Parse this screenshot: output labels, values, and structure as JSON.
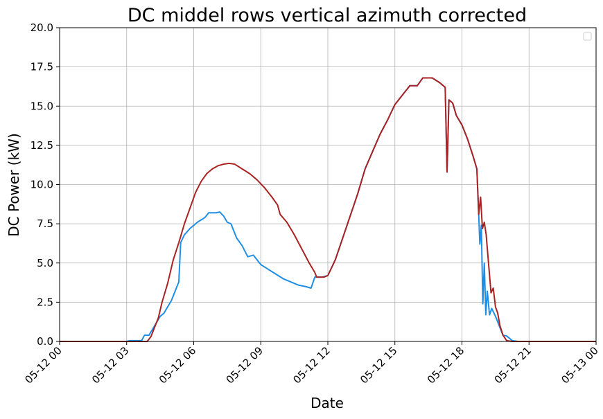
{
  "chart_data": {
    "type": "line",
    "title": "DC middel rows vertical azimuth corrected",
    "xlabel": "Date",
    "ylabel": "DC Power (kW)",
    "xlim": [
      "2024-05-12 00:00",
      "2024-05-13 00:00"
    ],
    "ylim": [
      0,
      20
    ],
    "grid": true,
    "legend": "top-right",
    "x_tick_labels": [
      "05-12 00",
      "05-12 03",
      "05-12 06",
      "05-12 09",
      "05-12 12",
      "05-12 15",
      "05-12 18",
      "05-12 21",
      "05-13 00"
    ],
    "y_tick_labels": [
      "0.0",
      "2.5",
      "5.0",
      "7.5",
      "10.0",
      "12.5",
      "15.0",
      "17.5",
      "20.0"
    ],
    "series": [
      {
        "color": "#1f8fe6",
        "points": [
          [
            "05-12 00:00",
            0
          ],
          [
            "05-12 03:00",
            0
          ],
          [
            "05-12 03:08",
            0.05
          ],
          [
            "05-12 03:40",
            0.05
          ],
          [
            "05-12 03:48",
            0.4
          ],
          [
            "05-12 04:00",
            0.4
          ],
          [
            "05-12 04:10",
            0.8
          ],
          [
            "05-12 04:20",
            1.2
          ],
          [
            "05-12 04:30",
            1.6
          ],
          [
            "05-12 04:40",
            1.8
          ],
          [
            "05-12 04:50",
            2.2
          ],
          [
            "05-12 05:00",
            2.6
          ],
          [
            "05-12 05:10",
            3.2
          ],
          [
            "05-12 05:20",
            3.8
          ],
          [
            "05-12 05:25",
            6.3
          ],
          [
            "05-12 05:35",
            6.8
          ],
          [
            "05-12 05:50",
            7.2
          ],
          [
            "05-12 06:10",
            7.6
          ],
          [
            "05-12 06:30",
            7.9
          ],
          [
            "05-12 06:40",
            8.2
          ],
          [
            "05-12 07:00",
            8.2
          ],
          [
            "05-12 07:10",
            8.25
          ],
          [
            "05-12 07:20",
            8.0
          ],
          [
            "05-12 07:30",
            7.6
          ],
          [
            "05-12 07:40",
            7.5
          ],
          [
            "05-12 07:55",
            6.6
          ],
          [
            "05-12 08:10",
            6.1
          ],
          [
            "05-12 08:25",
            5.4
          ],
          [
            "05-12 08:40",
            5.5
          ],
          [
            "05-12 09:00",
            4.9
          ],
          [
            "05-12 09:20",
            4.6
          ],
          [
            "05-12 09:40",
            4.3
          ],
          [
            "05-12 10:00",
            4.0
          ],
          [
            "05-12 10:20",
            3.8
          ],
          [
            "05-12 10:40",
            3.6
          ],
          [
            "05-12 11:00",
            3.5
          ],
          [
            "05-12 11:15",
            3.4
          ],
          [
            "05-12 11:25",
            4.1
          ],
          [
            "05-12 11:45",
            4.1
          ],
          [
            "05-12 12:00",
            4.2
          ],
          [
            "05-12 12:20",
            5.2
          ],
          [
            "05-12 12:40",
            6.6
          ],
          [
            "05-12 13:00",
            8.0
          ],
          [
            "05-12 13:20",
            9.4
          ],
          [
            "05-12 13:40",
            11.0
          ],
          [
            "05-12 14:00",
            12.1
          ],
          [
            "05-12 14:20",
            13.2
          ],
          [
            "05-12 14:40",
            14.1
          ],
          [
            "05-12 15:00",
            15.1
          ],
          [
            "05-12 15:20",
            15.7
          ],
          [
            "05-12 15:40",
            16.3
          ],
          [
            "05-12 16:00",
            16.3
          ],
          [
            "05-12 16:15",
            16.8
          ],
          [
            "05-12 16:40",
            16.8
          ],
          [
            "05-12 17:00",
            16.5
          ],
          [
            "05-12 17:15",
            16.2
          ],
          [
            "05-12 17:20",
            10.8
          ],
          [
            "05-12 17:25",
            15.4
          ],
          [
            "05-12 17:35",
            15.2
          ],
          [
            "05-12 17:45",
            14.4
          ],
          [
            "05-12 18:00",
            13.8
          ],
          [
            "05-12 18:15",
            12.9
          ],
          [
            "05-12 18:30",
            11.8
          ],
          [
            "05-12 18:40",
            11.0
          ],
          [
            "05-12 18:45",
            8.1
          ],
          [
            "05-12 18:48",
            6.2
          ],
          [
            "05-12 18:52",
            7.4
          ],
          [
            "05-12 18:56",
            2.4
          ],
          [
            "05-12 19:00",
            5.0
          ],
          [
            "05-12 19:04",
            1.7
          ],
          [
            "05-12 19:08",
            3.2
          ],
          [
            "05-12 19:14",
            1.7
          ],
          [
            "05-12 19:20",
            2.1
          ],
          [
            "05-12 19:30",
            1.6
          ],
          [
            "05-12 19:40",
            1.0
          ],
          [
            "05-12 19:50",
            0.4
          ],
          [
            "05-12 20:00",
            0.35
          ],
          [
            "05-12 20:15",
            0.05
          ],
          [
            "05-12 20:30",
            0.0
          ],
          [
            "05-13 00:00",
            0.0
          ]
        ]
      },
      {
        "color": "#aa2222",
        "points": [
          [
            "05-12 00:00",
            0
          ],
          [
            "05-12 03:55",
            0
          ],
          [
            "05-12 04:05",
            0.3
          ],
          [
            "05-12 04:15",
            0.9
          ],
          [
            "05-12 04:25",
            1.5
          ],
          [
            "05-12 04:35",
            2.5
          ],
          [
            "05-12 04:50",
            3.7
          ],
          [
            "05-12 05:05",
            5.2
          ],
          [
            "05-12 05:20",
            6.3
          ],
          [
            "05-12 05:35",
            7.5
          ],
          [
            "05-12 05:50",
            8.5
          ],
          [
            "05-12 06:05",
            9.5
          ],
          [
            "05-12 06:20",
            10.2
          ],
          [
            "05-12 06:35",
            10.7
          ],
          [
            "05-12 06:50",
            11.0
          ],
          [
            "05-12 07:05",
            11.2
          ],
          [
            "05-12 07:20",
            11.3
          ],
          [
            "05-12 07:35",
            11.35
          ],
          [
            "05-12 07:50",
            11.3
          ],
          [
            "05-12 08:10",
            11.0
          ],
          [
            "05-12 08:30",
            10.7
          ],
          [
            "05-12 08:50",
            10.3
          ],
          [
            "05-12 09:10",
            9.8
          ],
          [
            "05-12 09:30",
            9.2
          ],
          [
            "05-12 09:45",
            8.7
          ],
          [
            "05-12 09:52",
            8.1
          ],
          [
            "05-12 10:10",
            7.6
          ],
          [
            "05-12 10:30",
            6.8
          ],
          [
            "05-12 10:50",
            5.9
          ],
          [
            "05-12 11:10",
            5.0
          ],
          [
            "05-12 11:25",
            4.4
          ],
          [
            "05-12 11:30",
            4.1
          ],
          [
            "05-12 11:50",
            4.1
          ],
          [
            "05-12 12:00",
            4.2
          ],
          [
            "05-12 12:20",
            5.2
          ],
          [
            "05-12 12:40",
            6.6
          ],
          [
            "05-12 13:00",
            8.0
          ],
          [
            "05-12 13:20",
            9.4
          ],
          [
            "05-12 13:40",
            11.0
          ],
          [
            "05-12 14:00",
            12.1
          ],
          [
            "05-12 14:20",
            13.2
          ],
          [
            "05-12 14:40",
            14.1
          ],
          [
            "05-12 15:00",
            15.1
          ],
          [
            "05-12 15:20",
            15.7
          ],
          [
            "05-12 15:40",
            16.3
          ],
          [
            "05-12 16:00",
            16.3
          ],
          [
            "05-12 16:15",
            16.8
          ],
          [
            "05-12 16:40",
            16.8
          ],
          [
            "05-12 17:00",
            16.5
          ],
          [
            "05-12 17:15",
            16.2
          ],
          [
            "05-12 17:20",
            10.8
          ],
          [
            "05-12 17:25",
            15.4
          ],
          [
            "05-12 17:35",
            15.2
          ],
          [
            "05-12 17:45",
            14.4
          ],
          [
            "05-12 18:00",
            13.8
          ],
          [
            "05-12 18:15",
            12.9
          ],
          [
            "05-12 18:30",
            11.8
          ],
          [
            "05-12 18:40",
            11.0
          ],
          [
            "05-12 18:45",
            8.1
          ],
          [
            "05-12 18:50",
            9.2
          ],
          [
            "05-12 18:55",
            7.2
          ],
          [
            "05-12 19:00",
            7.6
          ],
          [
            "05-12 19:05",
            6.8
          ],
          [
            "05-12 19:12",
            4.8
          ],
          [
            "05-12 19:18",
            3.1
          ],
          [
            "05-12 19:24",
            3.4
          ],
          [
            "05-12 19:30",
            2.2
          ],
          [
            "05-12 19:36",
            1.8
          ],
          [
            "05-12 19:42",
            1.0
          ],
          [
            "05-12 19:50",
            0.4
          ],
          [
            "05-12 20:00",
            0.05
          ],
          [
            "05-12 20:15",
            0.0
          ],
          [
            "05-13 00:00",
            0.0
          ]
        ]
      }
    ]
  }
}
